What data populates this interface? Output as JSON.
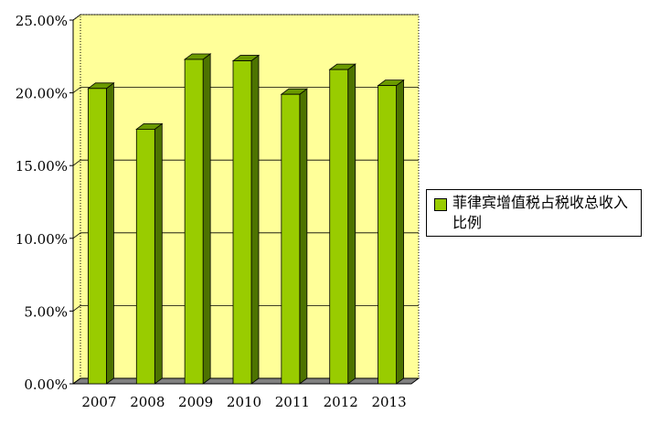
{
  "chart_data": {
    "type": "bar3d",
    "categories": [
      "2007",
      "2008",
      "2009",
      "2010",
      "2011",
      "2012",
      "2013"
    ],
    "series": [
      {
        "name": "菲律宾增值税占税收总收入比例",
        "color": "#99cc00",
        "values": [
          20.3,
          17.5,
          22.3,
          22.2,
          19.9,
          21.6,
          20.5
        ]
      }
    ],
    "ylim": [
      0,
      25
    ],
    "yticks": [
      {
        "value": 0,
        "label": "0.00%"
      },
      {
        "value": 5,
        "label": "5.00%"
      },
      {
        "value": 10,
        "label": "10.00%"
      },
      {
        "value": 15,
        "label": "15.00%"
      },
      {
        "value": 20,
        "label": "20.00%"
      },
      {
        "value": 25,
        "label": "25.00%"
      }
    ],
    "grid": true,
    "legend": "right"
  }
}
